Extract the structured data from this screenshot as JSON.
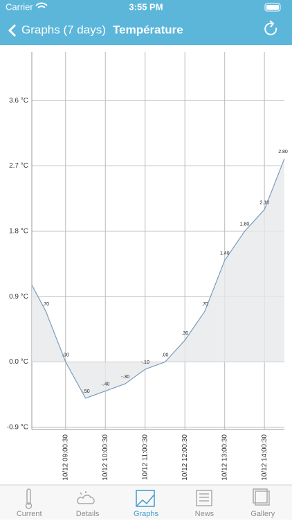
{
  "status_bar": {
    "carrier": "Carrier",
    "time": "3:55 PM"
  },
  "nav_bar": {
    "back": "Graphs (7 days)",
    "title": "Température"
  },
  "chart_data": {
    "type": "line",
    "x": [
      8.16,
      8.51,
      9.01,
      9.51,
      10.01,
      10.51,
      11.01,
      11.51,
      12.01,
      12.51,
      13.01,
      13.51,
      14.01,
      14.51
    ],
    "values": [
      1.06,
      0.7,
      0.0,
      -0.5,
      -0.4,
      -0.3,
      -0.1,
      0.0,
      0.3,
      0.7,
      1.4,
      1.8,
      2.1,
      2.8
    ],
    "value_labels": [
      null,
      ".70",
      ".00",
      "-.50",
      "-.40",
      "-.30",
      "-.10",
      ".00",
      ".30",
      ".70",
      "1.40",
      "1.80",
      "2.10",
      "2.80"
    ],
    "color": "#7a9cbf",
    "fill_color": "#e6e8eb",
    "xlim": [
      8.16,
      14.51
    ],
    "xticks": [
      {
        "value": 9.0083,
        "label": "10/12 09:00:30"
      },
      {
        "value": 10.0083,
        "label": "10/12 10:00:30"
      },
      {
        "value": 11.0083,
        "label": "10/12 11:00:30"
      },
      {
        "value": 12.0083,
        "label": "10/12 12:00:30"
      },
      {
        "value": 13.0083,
        "label": "10/12 13:00:30"
      },
      {
        "value": 14.0083,
        "label": "10/12 14:00:30"
      }
    ],
    "ylim": [
      -0.93,
      4.27
    ],
    "yticks": [
      {
        "value": 3.6,
        "label": "3.6 °C"
      },
      {
        "value": 2.7,
        "label": "2.7 °C"
      },
      {
        "value": 1.8,
        "label": "1.8 °C"
      },
      {
        "value": 0.9,
        "label": "0.9 °C"
      },
      {
        "value": 0.0,
        "label": "0.0 °C"
      },
      {
        "value": -0.9,
        "label": "-0.9 °C"
      }
    ],
    "grid": true
  },
  "tab_bar": {
    "active": 2,
    "tabs": [
      "Current",
      "Details",
      "Graphs",
      "News",
      "Gallery"
    ]
  }
}
